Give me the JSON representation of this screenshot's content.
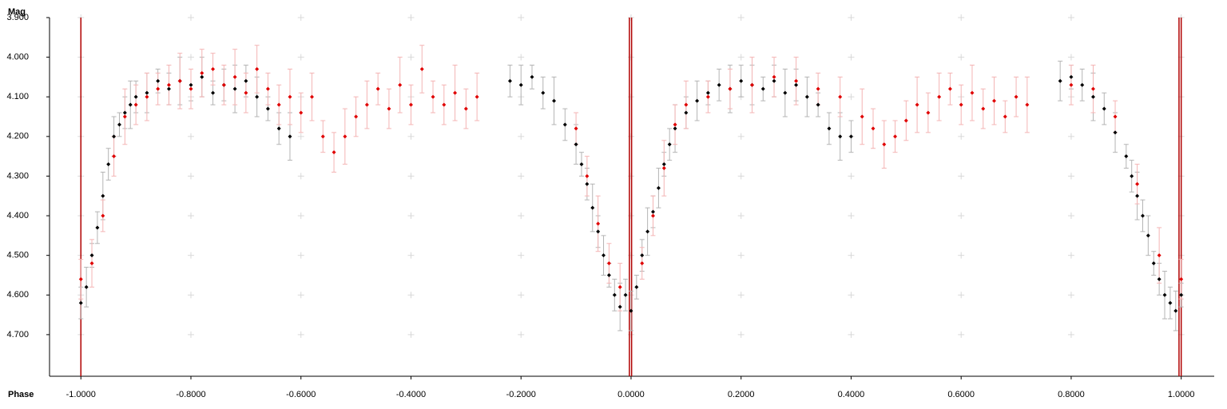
{
  "chart_data": {
    "type": "scatter",
    "x_label": "Phase",
    "y_label": "Mag",
    "xlim": [
      -1.057,
      1.06
    ],
    "ylim": [
      3.9,
      4.805
    ],
    "y_inverted": true,
    "grid": true,
    "xticks": [
      {
        "value": -1.0,
        "label": "-1.0000"
      },
      {
        "value": -0.8,
        "label": "-0.8000"
      },
      {
        "value": -0.6,
        "label": "-0.6000"
      },
      {
        "value": -0.4,
        "label": "-0.4000"
      },
      {
        "value": -0.2,
        "label": "-0.2000"
      },
      {
        "value": 0,
        "label": "0.0000"
      },
      {
        "value": 0.2,
        "label": "0.2000"
      },
      {
        "value": 0.4,
        "label": "0.4000"
      },
      {
        "value": 0.6,
        "label": "0.6000"
      },
      {
        "value": 0.8,
        "label": "0.8000"
      },
      {
        "value": 1.0,
        "label": "1.0000"
      }
    ],
    "yticks": [
      {
        "value": 3.9,
        "label": "3.900"
      },
      {
        "value": 4.0,
        "label": "4.000"
      },
      {
        "value": 4.1,
        "label": "4.100"
      },
      {
        "value": 4.2,
        "label": "4.200"
      },
      {
        "value": 4.3,
        "label": "4.300"
      },
      {
        "value": 4.4,
        "label": "4.400"
      },
      {
        "value": 4.5,
        "label": "4.500"
      },
      {
        "value": 4.6,
        "label": "4.600"
      },
      {
        "value": 4.7,
        "label": "4.700"
      }
    ],
    "epoch_lines": [
      -1.0,
      -0.003,
      0.001,
      0.996,
      1.0
    ],
    "epoch_line_color": "#b00000",
    "series": [
      {
        "color": "#000000",
        "error_color": "#b4b4b4",
        "x": [
          -1.0,
          -0.99,
          -0.98,
          -0.97,
          -0.96,
          -0.95,
          -0.94,
          -0.93,
          -0.92,
          -0.91,
          -0.9,
          -0.88,
          -0.86,
          -0.84,
          -0.82,
          -0.8,
          -0.78,
          -0.76,
          -0.74,
          -0.72,
          -0.7,
          -0.68,
          -0.66,
          -0.64,
          -0.62,
          -0.22,
          -0.2,
          -0.18,
          -0.16,
          -0.14,
          -0.12,
          -0.1,
          -0.09,
          -0.08,
          -0.07,
          -0.06,
          -0.05,
          -0.04,
          -0.03,
          -0.02,
          -0.01,
          0.0,
          0.01,
          0.02,
          0.03,
          0.04,
          0.05,
          0.06,
          0.07,
          0.08,
          0.1,
          0.12,
          0.14,
          0.16,
          0.18,
          0.2,
          0.22,
          0.24,
          0.26,
          0.28,
          0.3,
          0.32,
          0.34,
          0.36,
          0.38,
          0.4,
          0.78,
          0.8,
          0.82,
          0.84,
          0.86,
          0.88,
          0.9,
          0.91,
          0.92,
          0.93,
          0.94,
          0.95,
          0.96,
          0.97,
          0.98,
          0.99,
          1.0
        ],
        "values": [
          4.62,
          4.58,
          4.5,
          4.43,
          4.35,
          4.27,
          4.2,
          4.17,
          4.14,
          4.12,
          4.1,
          4.09,
          4.06,
          4.08,
          4.06,
          4.07,
          4.05,
          4.09,
          4.07,
          4.08,
          4.06,
          4.1,
          4.13,
          4.18,
          4.2,
          4.06,
          4.07,
          4.05,
          4.09,
          4.11,
          4.17,
          4.22,
          4.27,
          4.32,
          4.38,
          4.44,
          4.5,
          4.55,
          4.6,
          4.63,
          4.6,
          4.64,
          4.58,
          4.5,
          4.44,
          4.39,
          4.33,
          4.27,
          4.22,
          4.18,
          4.14,
          4.11,
          4.09,
          4.07,
          4.08,
          4.06,
          4.07,
          4.08,
          4.06,
          4.09,
          4.07,
          4.1,
          4.12,
          4.18,
          4.2,
          4.2,
          4.06,
          4.05,
          4.07,
          4.1,
          4.13,
          4.19,
          4.25,
          4.3,
          4.35,
          4.4,
          4.45,
          4.52,
          4.56,
          4.6,
          4.62,
          4.64,
          4.6
        ],
        "errors": [
          0.04,
          0.05,
          0.03,
          0.04,
          0.06,
          0.04,
          0.05,
          0.03,
          0.04,
          0.06,
          0.04,
          0.05,
          0.03,
          0.04,
          0.06,
          0.04,
          0.05,
          0.03,
          0.04,
          0.06,
          0.04,
          0.05,
          0.03,
          0.04,
          0.06,
          0.04,
          0.05,
          0.03,
          0.04,
          0.06,
          0.04,
          0.05,
          0.03,
          0.04,
          0.06,
          0.04,
          0.05,
          0.03,
          0.04,
          0.06,
          0.04,
          0.05,
          0.03,
          0.04,
          0.06,
          0.04,
          0.05,
          0.03,
          0.04,
          0.06,
          0.04,
          0.05,
          0.03,
          0.04,
          0.06,
          0.04,
          0.05,
          0.03,
          0.04,
          0.06,
          0.04,
          0.05,
          0.03,
          0.04,
          0.06,
          0.04,
          0.05,
          0.03,
          0.04,
          0.06,
          0.04,
          0.05,
          0.03,
          0.04,
          0.06,
          0.04,
          0.05,
          0.03,
          0.04,
          0.06,
          0.04,
          0.05,
          0.03
        ]
      },
      {
        "color": "#e00000",
        "error_color": "#f4b4b4",
        "x": [
          -1.0,
          -0.98,
          -0.96,
          -0.94,
          -0.92,
          -0.9,
          -0.88,
          -0.86,
          -0.84,
          -0.82,
          -0.8,
          -0.78,
          -0.76,
          -0.74,
          -0.72,
          -0.7,
          -0.68,
          -0.66,
          -0.64,
          -0.62,
          -0.6,
          -0.58,
          -0.56,
          -0.54,
          -0.52,
          -0.5,
          -0.48,
          -0.46,
          -0.44,
          -0.42,
          -0.4,
          -0.38,
          -0.36,
          -0.34,
          -0.32,
          -0.3,
          -0.28,
          -0.1,
          -0.08,
          -0.06,
          -0.04,
          -0.02,
          0.02,
          0.04,
          0.06,
          0.08,
          0.1,
          0.14,
          0.18,
          0.22,
          0.26,
          0.3,
          0.34,
          0.38,
          0.42,
          0.44,
          0.46,
          0.48,
          0.5,
          0.52,
          0.54,
          0.56,
          0.58,
          0.6,
          0.62,
          0.64,
          0.66,
          0.68,
          0.7,
          0.72,
          0.8,
          0.84,
          0.88,
          0.92,
          0.96,
          1.0
        ],
        "values": [
          4.56,
          4.52,
          4.4,
          4.25,
          4.15,
          4.12,
          4.1,
          4.08,
          4.07,
          4.06,
          4.08,
          4.04,
          4.03,
          4.07,
          4.05,
          4.09,
          4.03,
          4.08,
          4.12,
          4.1,
          4.14,
          4.1,
          4.2,
          4.24,
          4.2,
          4.15,
          4.12,
          4.08,
          4.13,
          4.07,
          4.12,
          4.03,
          4.1,
          4.12,
          4.09,
          4.13,
          4.1,
          4.18,
          4.3,
          4.42,
          4.52,
          4.58,
          4.52,
          4.4,
          4.28,
          4.17,
          4.12,
          4.1,
          4.08,
          4.07,
          4.05,
          4.06,
          4.08,
          4.1,
          4.15,
          4.18,
          4.22,
          4.2,
          4.16,
          4.12,
          4.14,
          4.1,
          4.08,
          4.12,
          4.09,
          4.13,
          4.11,
          4.15,
          4.1,
          4.12,
          4.07,
          4.08,
          4.15,
          4.32,
          4.5,
          4.56
        ],
        "errors": [
          0.05,
          0.06,
          0.04,
          0.05,
          0.07,
          0.05,
          0.06,
          0.04,
          0.05,
          0.07,
          0.05,
          0.06,
          0.04,
          0.05,
          0.07,
          0.05,
          0.06,
          0.04,
          0.05,
          0.07,
          0.05,
          0.06,
          0.04,
          0.05,
          0.07,
          0.05,
          0.06,
          0.04,
          0.05,
          0.07,
          0.05,
          0.06,
          0.04,
          0.05,
          0.07,
          0.05,
          0.06,
          0.04,
          0.05,
          0.07,
          0.05,
          0.06,
          0.04,
          0.05,
          0.07,
          0.05,
          0.06,
          0.04,
          0.05,
          0.07,
          0.05,
          0.06,
          0.04,
          0.05,
          0.07,
          0.05,
          0.06,
          0.04,
          0.05,
          0.07,
          0.05,
          0.06,
          0.04,
          0.05,
          0.07,
          0.05,
          0.06,
          0.04,
          0.05,
          0.07,
          0.05,
          0.06,
          0.04,
          0.05,
          0.07,
          0.05
        ]
      }
    ]
  }
}
